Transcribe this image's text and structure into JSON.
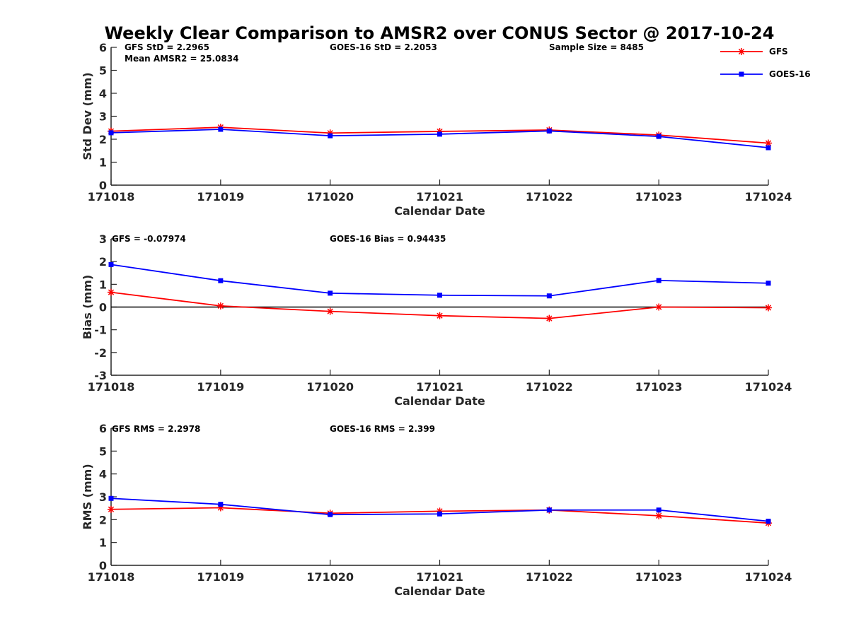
{
  "title": "Weekly Clear Comparison to AMSR2 over CONUS Sector @ 2017-10-24",
  "legend": {
    "position": "top-right",
    "entries": [
      {
        "name": "GFS",
        "color": "#ff0000",
        "marker": "asterisk"
      },
      {
        "name": "GOES-16",
        "color": "#0000ff",
        "marker": "square"
      }
    ]
  },
  "chart_data": [
    {
      "type": "line",
      "title": "",
      "xlabel": "Calendar Date",
      "ylabel": "Std Dev (mm)",
      "categories": [
        "171018",
        "171019",
        "171020",
        "171021",
        "171022",
        "171023",
        "171024"
      ],
      "ylim": [
        0,
        6
      ],
      "yticks": [
        "0",
        "1",
        "2",
        "3",
        "4",
        "5",
        "6"
      ],
      "zero_line": false,
      "annotations": [
        "GFS StD = 2.2965",
        "Mean AMSR2 = 25.0834",
        "GOES-16 StD = 2.2053",
        "Sample Size = 8485"
      ],
      "series": [
        {
          "name": "GFS",
          "color": "#ff0000",
          "marker": "asterisk",
          "values": [
            2.35,
            2.52,
            2.27,
            2.34,
            2.4,
            2.18,
            1.83
          ]
        },
        {
          "name": "GOES-16",
          "color": "#0000ff",
          "marker": "square",
          "values": [
            2.28,
            2.43,
            2.15,
            2.22,
            2.36,
            2.12,
            1.63
          ]
        }
      ]
    },
    {
      "type": "line",
      "title": "",
      "xlabel": "Calendar Date",
      "ylabel": "Bias (mm)",
      "categories": [
        "171018",
        "171019",
        "171020",
        "171021",
        "171022",
        "171023",
        "171024"
      ],
      "ylim": [
        -3,
        3
      ],
      "yticks": [
        "-3",
        "-2",
        "-1",
        "0",
        "1",
        "2",
        "3"
      ],
      "zero_line": true,
      "annotations": [
        "GFS = -0.07974",
        "GOES-16 Bias  = 0.94435"
      ],
      "series": [
        {
          "name": "GFS",
          "color": "#ff0000",
          "marker": "asterisk",
          "values": [
            0.65,
            0.05,
            -0.19,
            -0.38,
            -0.5,
            0.0,
            -0.03
          ]
        },
        {
          "name": "GOES-16",
          "color": "#0000ff",
          "marker": "square",
          "values": [
            1.87,
            1.16,
            0.61,
            0.52,
            0.49,
            1.17,
            1.05
          ]
        }
      ]
    },
    {
      "type": "line",
      "title": "",
      "xlabel": "Calendar Date",
      "ylabel": "RMS (mm)",
      "categories": [
        "171018",
        "171019",
        "171020",
        "171021",
        "171022",
        "171023",
        "171024"
      ],
      "ylim": [
        0,
        6
      ],
      "yticks": [
        "0",
        "1",
        "2",
        "3",
        "4",
        "5",
        "6"
      ],
      "zero_line": false,
      "annotations": [
        "GFS RMS = 2.2978",
        "GOES-16 RMS = 2.399"
      ],
      "series": [
        {
          "name": "GFS",
          "color": "#ff0000",
          "marker": "asterisk",
          "values": [
            2.45,
            2.52,
            2.28,
            2.37,
            2.42,
            2.17,
            1.85
          ]
        },
        {
          "name": "GOES-16",
          "color": "#0000ff",
          "marker": "square",
          "values": [
            2.93,
            2.67,
            2.22,
            2.25,
            2.42,
            2.42,
            1.93
          ]
        }
      ]
    }
  ]
}
